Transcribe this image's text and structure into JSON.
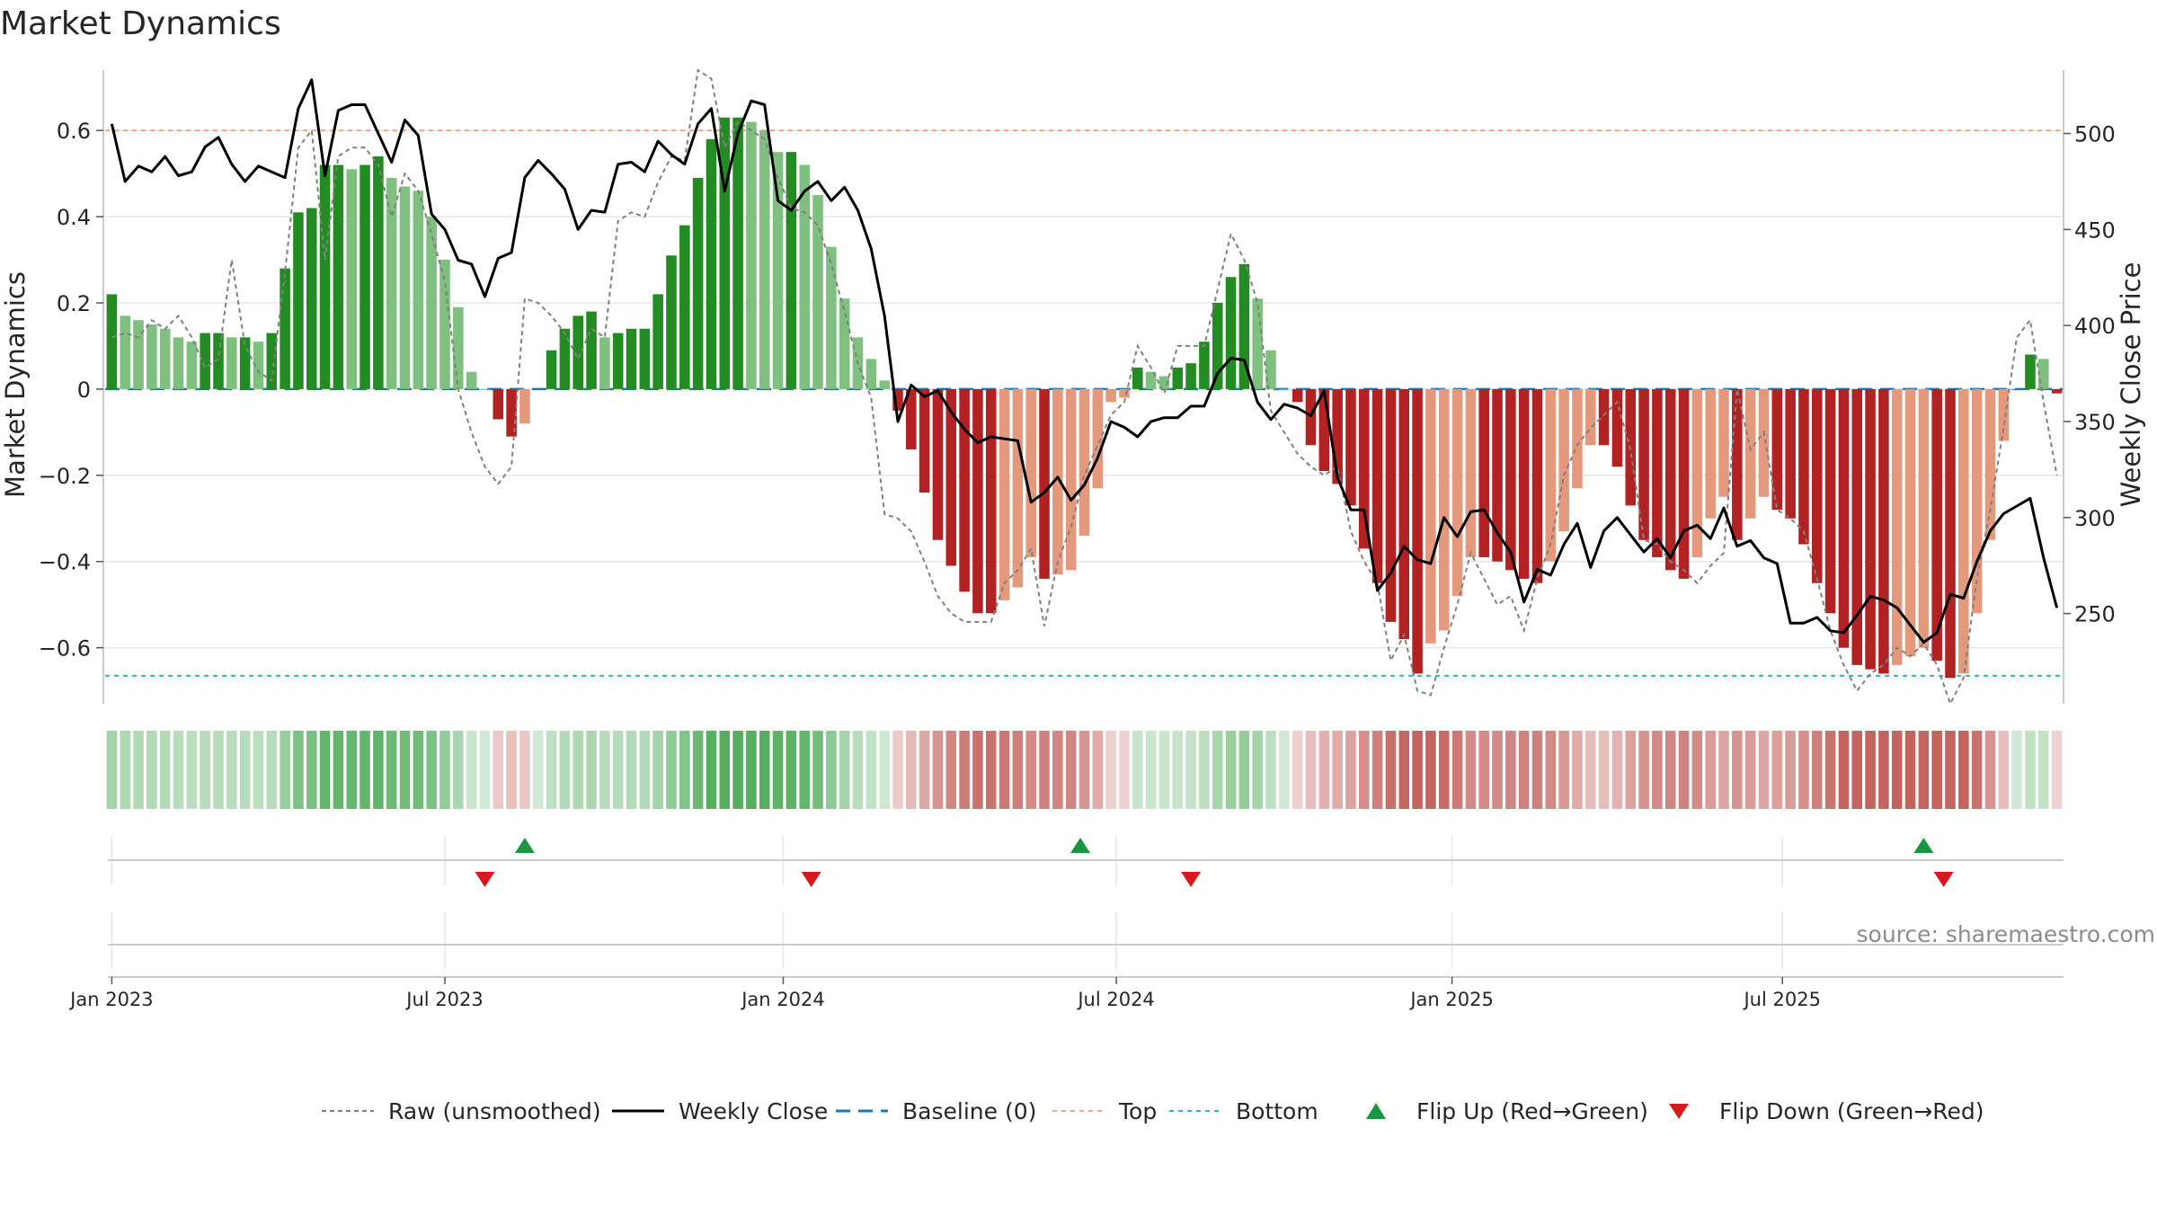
{
  "chart_data": {
    "type": "bar",
    "title": "Market Dynamics",
    "ylabel": "Market Dynamics",
    "y2label": "Weekly Close Price",
    "ylim": [
      -0.73,
      0.74
    ],
    "y2lim": [
      203,
      533
    ],
    "yticks": [
      "0.6",
      "0.4",
      "0.2",
      "0",
      "−0.2",
      "−0.4",
      "−0.6"
    ],
    "ytick_values": [
      0.6,
      0.4,
      0.2,
      0,
      -0.2,
      -0.4,
      -0.6
    ],
    "y2ticks": [
      "500",
      "450",
      "400",
      "350",
      "300",
      "250"
    ],
    "y2tick_values": [
      500,
      450,
      400,
      350,
      300,
      250
    ],
    "xticks": [
      "Jan 2023",
      "Jul 2023",
      "Jan 2024",
      "Jul 2024",
      "Jan 2025",
      "Jul 2025"
    ],
    "xtick_weeks": [
      1,
      26,
      51.4,
      76.4,
      101.6,
      126.4
    ],
    "grid": true,
    "legend_position": "bottom",
    "top_line": 0.6,
    "bottom_line": -0.665,
    "baseline": 0,
    "source": "source: sharemaestro.com",
    "colors": {
      "strong_green": "#228b22",
      "light_green": "#7fbf7f",
      "strong_red": "#b22222",
      "light_red": "#e5997c",
      "close": "#000000",
      "raw": "#808080",
      "baseline": "#1f77b4",
      "top": "#f4a582",
      "bottom": "#17becf",
      "flip_up": "#1a9641",
      "flip_down": "#d7191c",
      "grid": "#e6e6e6"
    },
    "legend": [
      {
        "label": "Raw (unsmoothed)",
        "kind": "raw"
      },
      {
        "label": "Weekly Close",
        "kind": "close"
      },
      {
        "label": "Baseline (0)",
        "kind": "baseline"
      },
      {
        "label": "Top",
        "kind": "top"
      },
      {
        "label": "Bottom",
        "kind": "bottom"
      },
      {
        "label": "Flip Up (Red→Green)",
        "kind": "flip_up"
      },
      {
        "label": "Flip Down (Green→Red)",
        "kind": "flip_down"
      }
    ],
    "values": [
      0.22,
      0.17,
      0.16,
      0.15,
      0.14,
      0.12,
      0.11,
      0.13,
      0.13,
      0.12,
      0.12,
      0.11,
      0.13,
      0.28,
      0.41,
      0.42,
      0.52,
      0.52,
      0.51,
      0.52,
      0.54,
      0.49,
      0.47,
      0.46,
      0.4,
      0.3,
      0.19,
      0.04,
      0.0,
      -0.07,
      -0.11,
      -0.08,
      0.0,
      0.09,
      0.14,
      0.17,
      0.18,
      0.12,
      0.13,
      0.14,
      0.14,
      0.22,
      0.31,
      0.38,
      0.49,
      0.58,
      0.63,
      0.63,
      0.62,
      0.6,
      0.55,
      0.55,
      0.52,
      0.45,
      0.33,
      0.21,
      0.12,
      0.07,
      0.02,
      -0.05,
      -0.14,
      -0.24,
      -0.35,
      -0.41,
      -0.47,
      -0.52,
      -0.52,
      -0.49,
      -0.46,
      -0.39,
      -0.44,
      -0.43,
      -0.42,
      -0.34,
      -0.23,
      -0.03,
      -0.02,
      0.05,
      0.04,
      0.03,
      0.05,
      0.06,
      0.11,
      0.2,
      0.26,
      0.29,
      0.21,
      0.09,
      0.0,
      -0.03,
      -0.13,
      -0.19,
      -0.22,
      -0.27,
      -0.37,
      -0.45,
      -0.54,
      -0.58,
      -0.66,
      -0.59,
      -0.56,
      -0.48,
      -0.39,
      -0.39,
      -0.4,
      -0.42,
      -0.44,
      -0.45,
      -0.4,
      -0.33,
      -0.23,
      -0.13,
      -0.13,
      -0.18,
      -0.27,
      -0.35,
      -0.39,
      -0.42,
      -0.44,
      -0.39,
      -0.3,
      -0.25,
      -0.35,
      -0.3,
      -0.25,
      -0.28,
      -0.3,
      -0.36,
      -0.45,
      -0.52,
      -0.6,
      -0.64,
      -0.65,
      -0.66,
      -0.64,
      -0.62,
      -0.6,
      -0.63,
      -0.67,
      -0.66,
      -0.52,
      -0.35,
      -0.12,
      0.0,
      0.08,
      0.07,
      -0.01
    ],
    "close": [
      505,
      475,
      483,
      480,
      488,
      478,
      480,
      493,
      498,
      484,
      475,
      483,
      480,
      477,
      513,
      528,
      478,
      512,
      515,
      515,
      500,
      485,
      507,
      499,
      458,
      450,
      434,
      432,
      415,
      435,
      438,
      477,
      486,
      479,
      471,
      450,
      460,
      459,
      484,
      485,
      480,
      496,
      489,
      484,
      505,
      513,
      470,
      500,
      517,
      515,
      465,
      460,
      470,
      475,
      465,
      472,
      460,
      440,
      405,
      350,
      369,
      363,
      366,
      355,
      346,
      339,
      342,
      341,
      340,
      308,
      313,
      321,
      309,
      317,
      331,
      350,
      347,
      342,
      350,
      352,
      352,
      358,
      358,
      375,
      383,
      382,
      360,
      351,
      359,
      357,
      353,
      366,
      321,
      304,
      304,
      262,
      271,
      285,
      278,
      276,
      300,
      290,
      303,
      304,
      292,
      282,
      256,
      273,
      270,
      286,
      297,
      274,
      293,
      300,
      291,
      282,
      289,
      279,
      293,
      296,
      289,
      305,
      285,
      288,
      279,
      276,
      245,
      245,
      248,
      241,
      240,
      249,
      259,
      257,
      253,
      244,
      235,
      240,
      260,
      258,
      277,
      293,
      302,
      306,
      310,
      279,
      253
    ],
    "raw": [
      0.12,
      0.13,
      0.12,
      0.16,
      0.14,
      0.17,
      0.12,
      0.05,
      0.07,
      0.3,
      0.1,
      0.04,
      0.02,
      0.27,
      0.56,
      0.6,
      0.3,
      0.54,
      0.56,
      0.56,
      0.52,
      0.4,
      0.5,
      0.46,
      0.36,
      0.25,
      0.0,
      -0.1,
      -0.18,
      -0.22,
      -0.18,
      0.21,
      0.2,
      0.17,
      0.13,
      0.07,
      0.14,
      0.12,
      0.39,
      0.41,
      0.4,
      0.48,
      0.54,
      0.53,
      0.74,
      0.72,
      0.56,
      0.62,
      0.6,
      0.58,
      0.49,
      0.42,
      0.41,
      0.38,
      0.29,
      0.18,
      0.06,
      -0.02,
      -0.29,
      -0.3,
      -0.33,
      -0.4,
      -0.48,
      -0.52,
      -0.54,
      -0.54,
      -0.54,
      -0.45,
      -0.42,
      -0.37,
      -0.55,
      -0.4,
      -0.32,
      -0.2,
      -0.13,
      -0.06,
      -0.03,
      0.1,
      0.05,
      -0.01,
      0.1,
      0.1,
      0.1,
      0.23,
      0.36,
      0.3,
      0.2,
      -0.05,
      -0.1,
      -0.15,
      -0.18,
      -0.2,
      -0.18,
      -0.33,
      -0.4,
      -0.45,
      -0.63,
      -0.57,
      -0.7,
      -0.71,
      -0.6,
      -0.5,
      -0.38,
      -0.44,
      -0.5,
      -0.48,
      -0.56,
      -0.44,
      -0.36,
      -0.2,
      -0.13,
      -0.09,
      -0.06,
      -0.03,
      -0.14,
      -0.35,
      -0.36,
      -0.4,
      -0.42,
      -0.45,
      -0.41,
      -0.38,
      0.0,
      -0.14,
      -0.1,
      -0.28,
      -0.3,
      -0.33,
      -0.44,
      -0.56,
      -0.64,
      -0.7,
      -0.66,
      -0.64,
      -0.6,
      -0.62,
      -0.59,
      -0.64,
      -0.73,
      -0.67,
      -0.44,
      -0.28,
      -0.09,
      0.12,
      0.16,
      -0.03,
      -0.2
    ],
    "flips": [
      {
        "week": 29,
        "dir": "down"
      },
      {
        "week": 32,
        "dir": "up"
      },
      {
        "week": 53.5,
        "dir": "down"
      },
      {
        "week": 73.7,
        "dir": "up"
      },
      {
        "week": 82,
        "dir": "down"
      },
      {
        "week": 137,
        "dir": "up"
      },
      {
        "week": 138.5,
        "dir": "down"
      }
    ]
  }
}
